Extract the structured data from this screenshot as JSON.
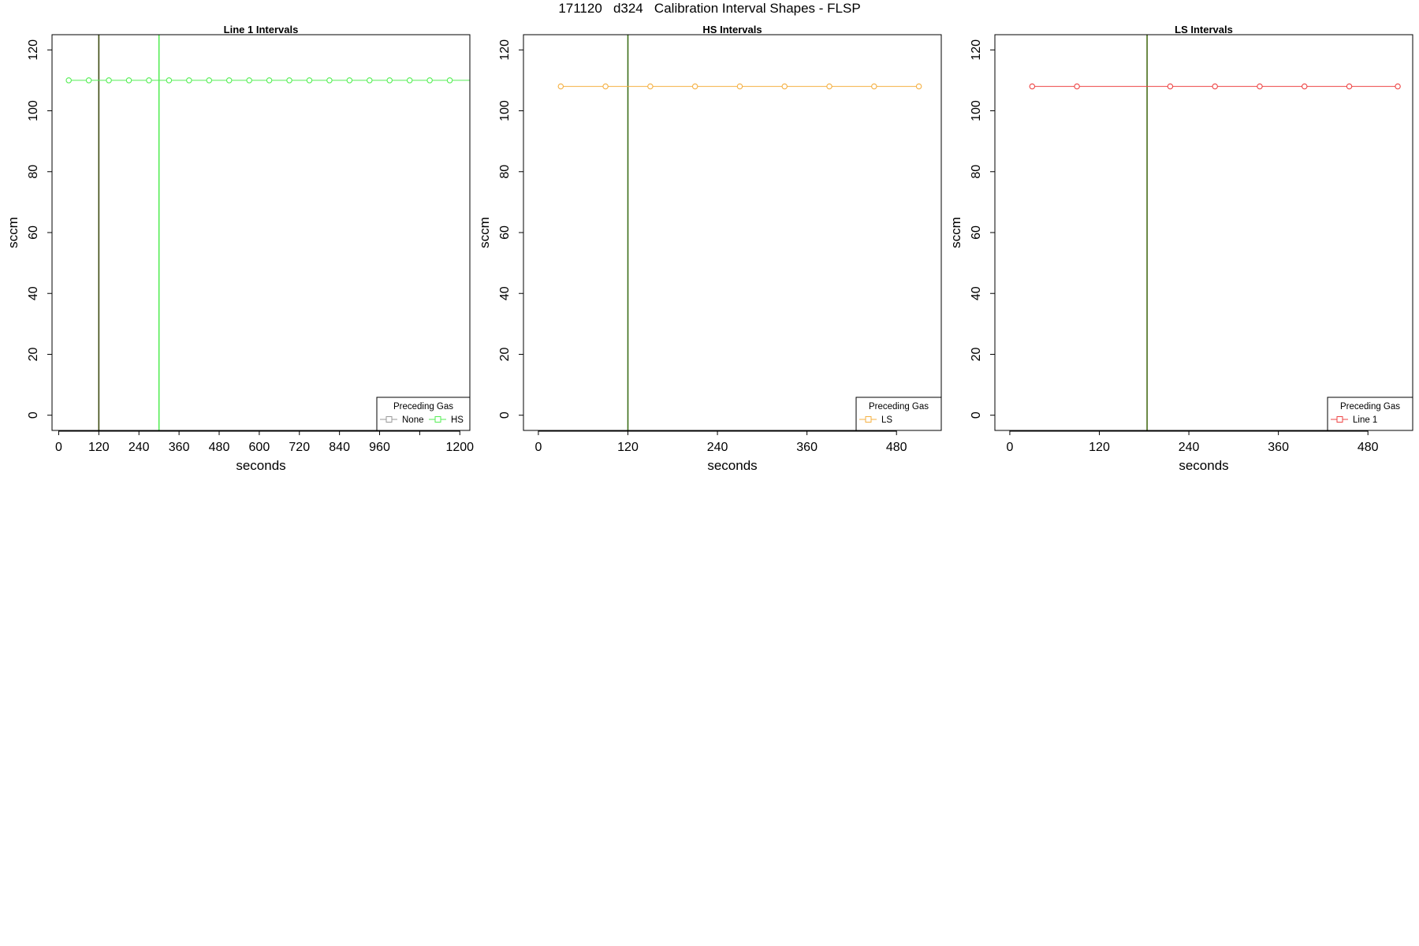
{
  "figure_title": "171120   d324   Calibration Interval Shapes - FLSP",
  "chart_data": [
    {
      "type": "line",
      "title": "Line 1 Intervals",
      "xlabel": "seconds",
      "ylabel": "sccm",
      "xlim": [
        -20,
        1230
      ],
      "ylim": [
        -5,
        125
      ],
      "x_ticks": [
        0,
        120,
        240,
        360,
        480,
        600,
        720,
        840,
        960,
        1080,
        1200
      ],
      "x_tick_labels": [
        "0",
        "120",
        "240",
        "360",
        "480",
        "600",
        "720",
        "840",
        "960",
        "",
        "1200"
      ],
      "y_ticks": [
        0,
        20,
        40,
        60,
        80,
        100,
        120
      ],
      "grid": false,
      "vlines": [
        {
          "x": 120,
          "color": "#3d4a12"
        },
        {
          "x": 300,
          "color": "#55ee55"
        }
      ],
      "series": [
        {
          "name": "HS",
          "color": "#55ee55",
          "x": [
            30,
            90,
            150,
            210,
            270,
            330,
            390,
            450,
            510,
            570,
            630,
            690,
            750,
            810,
            870,
            930,
            990,
            1050,
            1110,
            1170
          ],
          "y": [
            110,
            110,
            110,
            110,
            110,
            110,
            110,
            110,
            110,
            110,
            110,
            110,
            110,
            110,
            110,
            110,
            110,
            110,
            110,
            110
          ],
          "extend_to_edge": true
        }
      ],
      "legend": {
        "title": "Preceding Gas",
        "position": "bottom-right",
        "entries": [
          {
            "label": "None",
            "color": "#999999"
          },
          {
            "label": "HS",
            "color": "#55ee55"
          }
        ]
      }
    },
    {
      "type": "line",
      "title": "HS Intervals",
      "xlabel": "seconds",
      "ylabel": "sccm",
      "xlim": [
        -20,
        540
      ],
      "ylim": [
        -5,
        125
      ],
      "x_ticks": [
        0,
        120,
        240,
        360,
        480
      ],
      "x_tick_labels": [
        "0",
        "120",
        "240",
        "360",
        "480"
      ],
      "y_ticks": [
        0,
        20,
        40,
        60,
        80,
        100,
        120
      ],
      "grid": false,
      "vlines": [
        {
          "x": 120,
          "color": "#3d6e1a"
        }
      ],
      "series": [
        {
          "name": "LS",
          "color": "#f5b042",
          "x": [
            30,
            90,
            150,
            210,
            270,
            330,
            390,
            450,
            510
          ],
          "y": [
            108,
            108,
            108,
            108,
            108,
            108,
            108,
            108,
            108
          ],
          "extend_to_edge": false
        }
      ],
      "legend": {
        "title": "Preceding Gas",
        "position": "bottom-right",
        "entries": [
          {
            "label": "LS",
            "color": "#f5b042"
          }
        ]
      }
    },
    {
      "type": "line",
      "title": "LS Intervals",
      "xlabel": "seconds",
      "ylabel": "sccm",
      "xlim": [
        -20,
        540
      ],
      "ylim": [
        -5,
        125
      ],
      "x_ticks": [
        0,
        120,
        240,
        360,
        480
      ],
      "x_tick_labels": [
        "0",
        "120",
        "240",
        "360",
        "480"
      ],
      "y_ticks": [
        0,
        20,
        40,
        60,
        80,
        100,
        120
      ],
      "grid": false,
      "vlines": [
        {
          "x": 184,
          "color": "#4a6e1a"
        }
      ],
      "series": [
        {
          "name": "Line 1",
          "color": "#ee4444",
          "x": [
            30,
            90,
            215,
            275,
            335,
            395,
            455,
            520
          ],
          "y": [
            108,
            108,
            108,
            108,
            108,
            108,
            108,
            108
          ],
          "extend_to_edge": false
        }
      ],
      "legend": {
        "title": "Preceding Gas",
        "position": "bottom-right",
        "entries": [
          {
            "label": "Line 1",
            "color": "#ee4444"
          }
        ]
      }
    }
  ]
}
